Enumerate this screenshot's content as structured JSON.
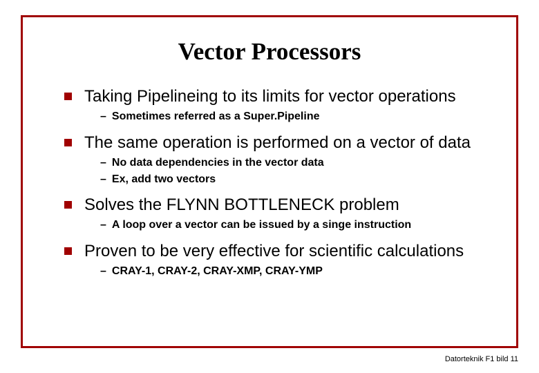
{
  "slide": {
    "title": "Vector Processors",
    "border_color": "#a00000",
    "bullet_color": "#a00000",
    "title_font": "Times New Roman",
    "title_fontsize": 35,
    "body_fontsize": 24,
    "sub_fontsize": 16,
    "bullets": [
      {
        "text": "Taking Pipelineing to its limits for vector operations",
        "subs": [
          "Sometimes referred as a Super.Pipeline"
        ]
      },
      {
        "text": "The same operation is performed on a vector of data",
        "subs": [
          "No data dependencies in the vector data",
          "Ex, add two vectors"
        ]
      },
      {
        "text": "Solves the FLYNN BOTTLENECK problem",
        "subs": [
          "A loop over a vector can be issued by a singe instruction"
        ]
      },
      {
        "text": "Proven to be very effective for scientific calculations",
        "subs": [
          "CRAY-1, CRAY-2, CRAY-XMP, CRAY-YMP"
        ]
      }
    ],
    "footer": "Datorteknik F1 bild 11"
  }
}
